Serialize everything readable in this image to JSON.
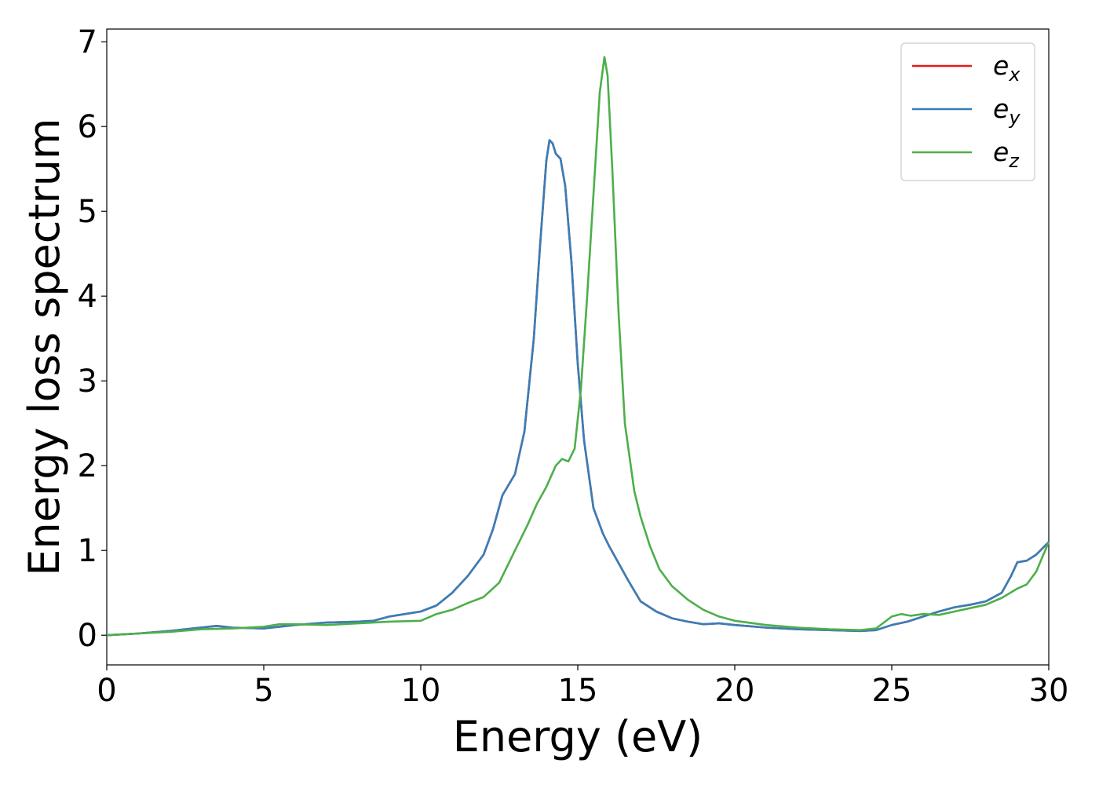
{
  "chart_data": {
    "type": "line",
    "title": "",
    "xlabel": "Energy (eV)",
    "ylabel": "Energy loss spectrum",
    "xlim": [
      0,
      30
    ],
    "ylim": [
      -0.35,
      7.15
    ],
    "xticks": [
      "0",
      "5",
      "10",
      "15",
      "20",
      "25",
      "30"
    ],
    "yticks": [
      "0",
      "1",
      "2",
      "3",
      "4",
      "5",
      "6",
      "7"
    ],
    "grid": false,
    "legend_position": "top-right",
    "series": [
      {
        "name_main": "e",
        "name_sub": "x",
        "color": "#e41a1c",
        "points": [
          [
            0,
            0
          ],
          [
            1,
            0.02
          ],
          [
            2,
            0.05
          ],
          [
            3,
            0.09
          ],
          [
            3.5,
            0.11
          ],
          [
            4,
            0.09
          ],
          [
            5,
            0.08
          ],
          [
            6,
            0.12
          ],
          [
            7,
            0.15
          ],
          [
            8,
            0.16
          ],
          [
            8.5,
            0.17
          ],
          [
            9,
            0.22
          ],
          [
            9.5,
            0.25
          ],
          [
            10,
            0.28
          ],
          [
            10.5,
            0.35
          ],
          [
            11,
            0.5
          ],
          [
            11.5,
            0.7
          ],
          [
            12,
            0.95
          ],
          [
            12.3,
            1.25
          ],
          [
            12.6,
            1.65
          ],
          [
            13,
            1.9
          ],
          [
            13.3,
            2.4
          ],
          [
            13.6,
            3.5
          ],
          [
            13.8,
            4.6
          ],
          [
            14,
            5.6
          ],
          [
            14.1,
            5.84
          ],
          [
            14.2,
            5.8
          ],
          [
            14.3,
            5.68
          ],
          [
            14.45,
            5.62
          ],
          [
            14.6,
            5.3
          ],
          [
            14.8,
            4.4
          ],
          [
            15,
            3.2
          ],
          [
            15.2,
            2.3
          ],
          [
            15.5,
            1.5
          ],
          [
            15.8,
            1.2
          ],
          [
            16,
            1.05
          ],
          [
            16.3,
            0.85
          ],
          [
            16.6,
            0.65
          ],
          [
            17,
            0.4
          ],
          [
            17.5,
            0.28
          ],
          [
            18,
            0.2
          ],
          [
            18.5,
            0.16
          ],
          [
            19,
            0.13
          ],
          [
            19.5,
            0.14
          ],
          [
            20,
            0.12
          ],
          [
            21,
            0.09
          ],
          [
            22,
            0.07
          ],
          [
            23,
            0.06
          ],
          [
            24,
            0.05
          ],
          [
            24.5,
            0.06
          ],
          [
            25,
            0.12
          ],
          [
            25.5,
            0.16
          ],
          [
            26,
            0.22
          ],
          [
            26.5,
            0.28
          ],
          [
            27,
            0.33
          ],
          [
            27.5,
            0.36
          ],
          [
            28,
            0.4
          ],
          [
            28.5,
            0.5
          ],
          [
            28.8,
            0.7
          ],
          [
            29,
            0.86
          ],
          [
            29.3,
            0.88
          ],
          [
            29.6,
            0.95
          ],
          [
            30,
            1.1
          ]
        ]
      },
      {
        "name_main": "e",
        "name_sub": "y",
        "color": "#377eb8",
        "points": [
          [
            0,
            0
          ],
          [
            1,
            0.02
          ],
          [
            2,
            0.05
          ],
          [
            3,
            0.09
          ],
          [
            3.5,
            0.11
          ],
          [
            4,
            0.09
          ],
          [
            5,
            0.08
          ],
          [
            6,
            0.12
          ],
          [
            7,
            0.15
          ],
          [
            8,
            0.16
          ],
          [
            8.5,
            0.17
          ],
          [
            9,
            0.22
          ],
          [
            9.5,
            0.25
          ],
          [
            10,
            0.28
          ],
          [
            10.5,
            0.35
          ],
          [
            11,
            0.5
          ],
          [
            11.5,
            0.7
          ],
          [
            12,
            0.95
          ],
          [
            12.3,
            1.25
          ],
          [
            12.6,
            1.65
          ],
          [
            13,
            1.9
          ],
          [
            13.3,
            2.4
          ],
          [
            13.6,
            3.5
          ],
          [
            13.8,
            4.6
          ],
          [
            14,
            5.6
          ],
          [
            14.1,
            5.84
          ],
          [
            14.2,
            5.8
          ],
          [
            14.3,
            5.68
          ],
          [
            14.45,
            5.62
          ],
          [
            14.6,
            5.3
          ],
          [
            14.8,
            4.4
          ],
          [
            15,
            3.2
          ],
          [
            15.2,
            2.3
          ],
          [
            15.5,
            1.5
          ],
          [
            15.8,
            1.2
          ],
          [
            16,
            1.05
          ],
          [
            16.3,
            0.85
          ],
          [
            16.6,
            0.65
          ],
          [
            17,
            0.4
          ],
          [
            17.5,
            0.28
          ],
          [
            18,
            0.2
          ],
          [
            18.5,
            0.16
          ],
          [
            19,
            0.13
          ],
          [
            19.5,
            0.14
          ],
          [
            20,
            0.12
          ],
          [
            21,
            0.09
          ],
          [
            22,
            0.07
          ],
          [
            23,
            0.06
          ],
          [
            24,
            0.05
          ],
          [
            24.5,
            0.06
          ],
          [
            25,
            0.12
          ],
          [
            25.5,
            0.16
          ],
          [
            26,
            0.22
          ],
          [
            26.5,
            0.28
          ],
          [
            27,
            0.33
          ],
          [
            27.5,
            0.36
          ],
          [
            28,
            0.4
          ],
          [
            28.5,
            0.5
          ],
          [
            28.8,
            0.7
          ],
          [
            29,
            0.86
          ],
          [
            29.3,
            0.88
          ],
          [
            29.6,
            0.95
          ],
          [
            30,
            1.1
          ]
        ]
      },
      {
        "name_main": "e",
        "name_sub": "z",
        "color": "#4daf4a",
        "points": [
          [
            0,
            0
          ],
          [
            1,
            0.02
          ],
          [
            2,
            0.04
          ],
          [
            3,
            0.07
          ],
          [
            4,
            0.08
          ],
          [
            5,
            0.1
          ],
          [
            5.5,
            0.13
          ],
          [
            6,
            0.13
          ],
          [
            7,
            0.12
          ],
          [
            8,
            0.14
          ],
          [
            9,
            0.16
          ],
          [
            10,
            0.17
          ],
          [
            10.5,
            0.25
          ],
          [
            11,
            0.3
          ],
          [
            11.5,
            0.38
          ],
          [
            12,
            0.45
          ],
          [
            12.5,
            0.62
          ],
          [
            13,
            1.0
          ],
          [
            13.4,
            1.3
          ],
          [
            13.7,
            1.55
          ],
          [
            14,
            1.75
          ],
          [
            14.3,
            2.0
          ],
          [
            14.5,
            2.08
          ],
          [
            14.7,
            2.05
          ],
          [
            14.9,
            2.2
          ],
          [
            15.1,
            2.9
          ],
          [
            15.3,
            4.0
          ],
          [
            15.5,
            5.2
          ],
          [
            15.7,
            6.4
          ],
          [
            15.85,
            6.82
          ],
          [
            15.95,
            6.6
          ],
          [
            16.1,
            5.5
          ],
          [
            16.3,
            3.8
          ],
          [
            16.5,
            2.5
          ],
          [
            16.8,
            1.7
          ],
          [
            17,
            1.4
          ],
          [
            17.3,
            1.05
          ],
          [
            17.6,
            0.78
          ],
          [
            18,
            0.58
          ],
          [
            18.5,
            0.42
          ],
          [
            19,
            0.3
          ],
          [
            19.5,
            0.22
          ],
          [
            20,
            0.17
          ],
          [
            21,
            0.12
          ],
          [
            22,
            0.09
          ],
          [
            23,
            0.07
          ],
          [
            24,
            0.06
          ],
          [
            24.5,
            0.08
          ],
          [
            25,
            0.22
          ],
          [
            25.3,
            0.25
          ],
          [
            25.6,
            0.23
          ],
          [
            26,
            0.25
          ],
          [
            26.5,
            0.24
          ],
          [
            27,
            0.28
          ],
          [
            28,
            0.36
          ],
          [
            28.5,
            0.44
          ],
          [
            29,
            0.55
          ],
          [
            29.3,
            0.6
          ],
          [
            29.6,
            0.75
          ],
          [
            30,
            1.1
          ]
        ]
      }
    ]
  }
}
